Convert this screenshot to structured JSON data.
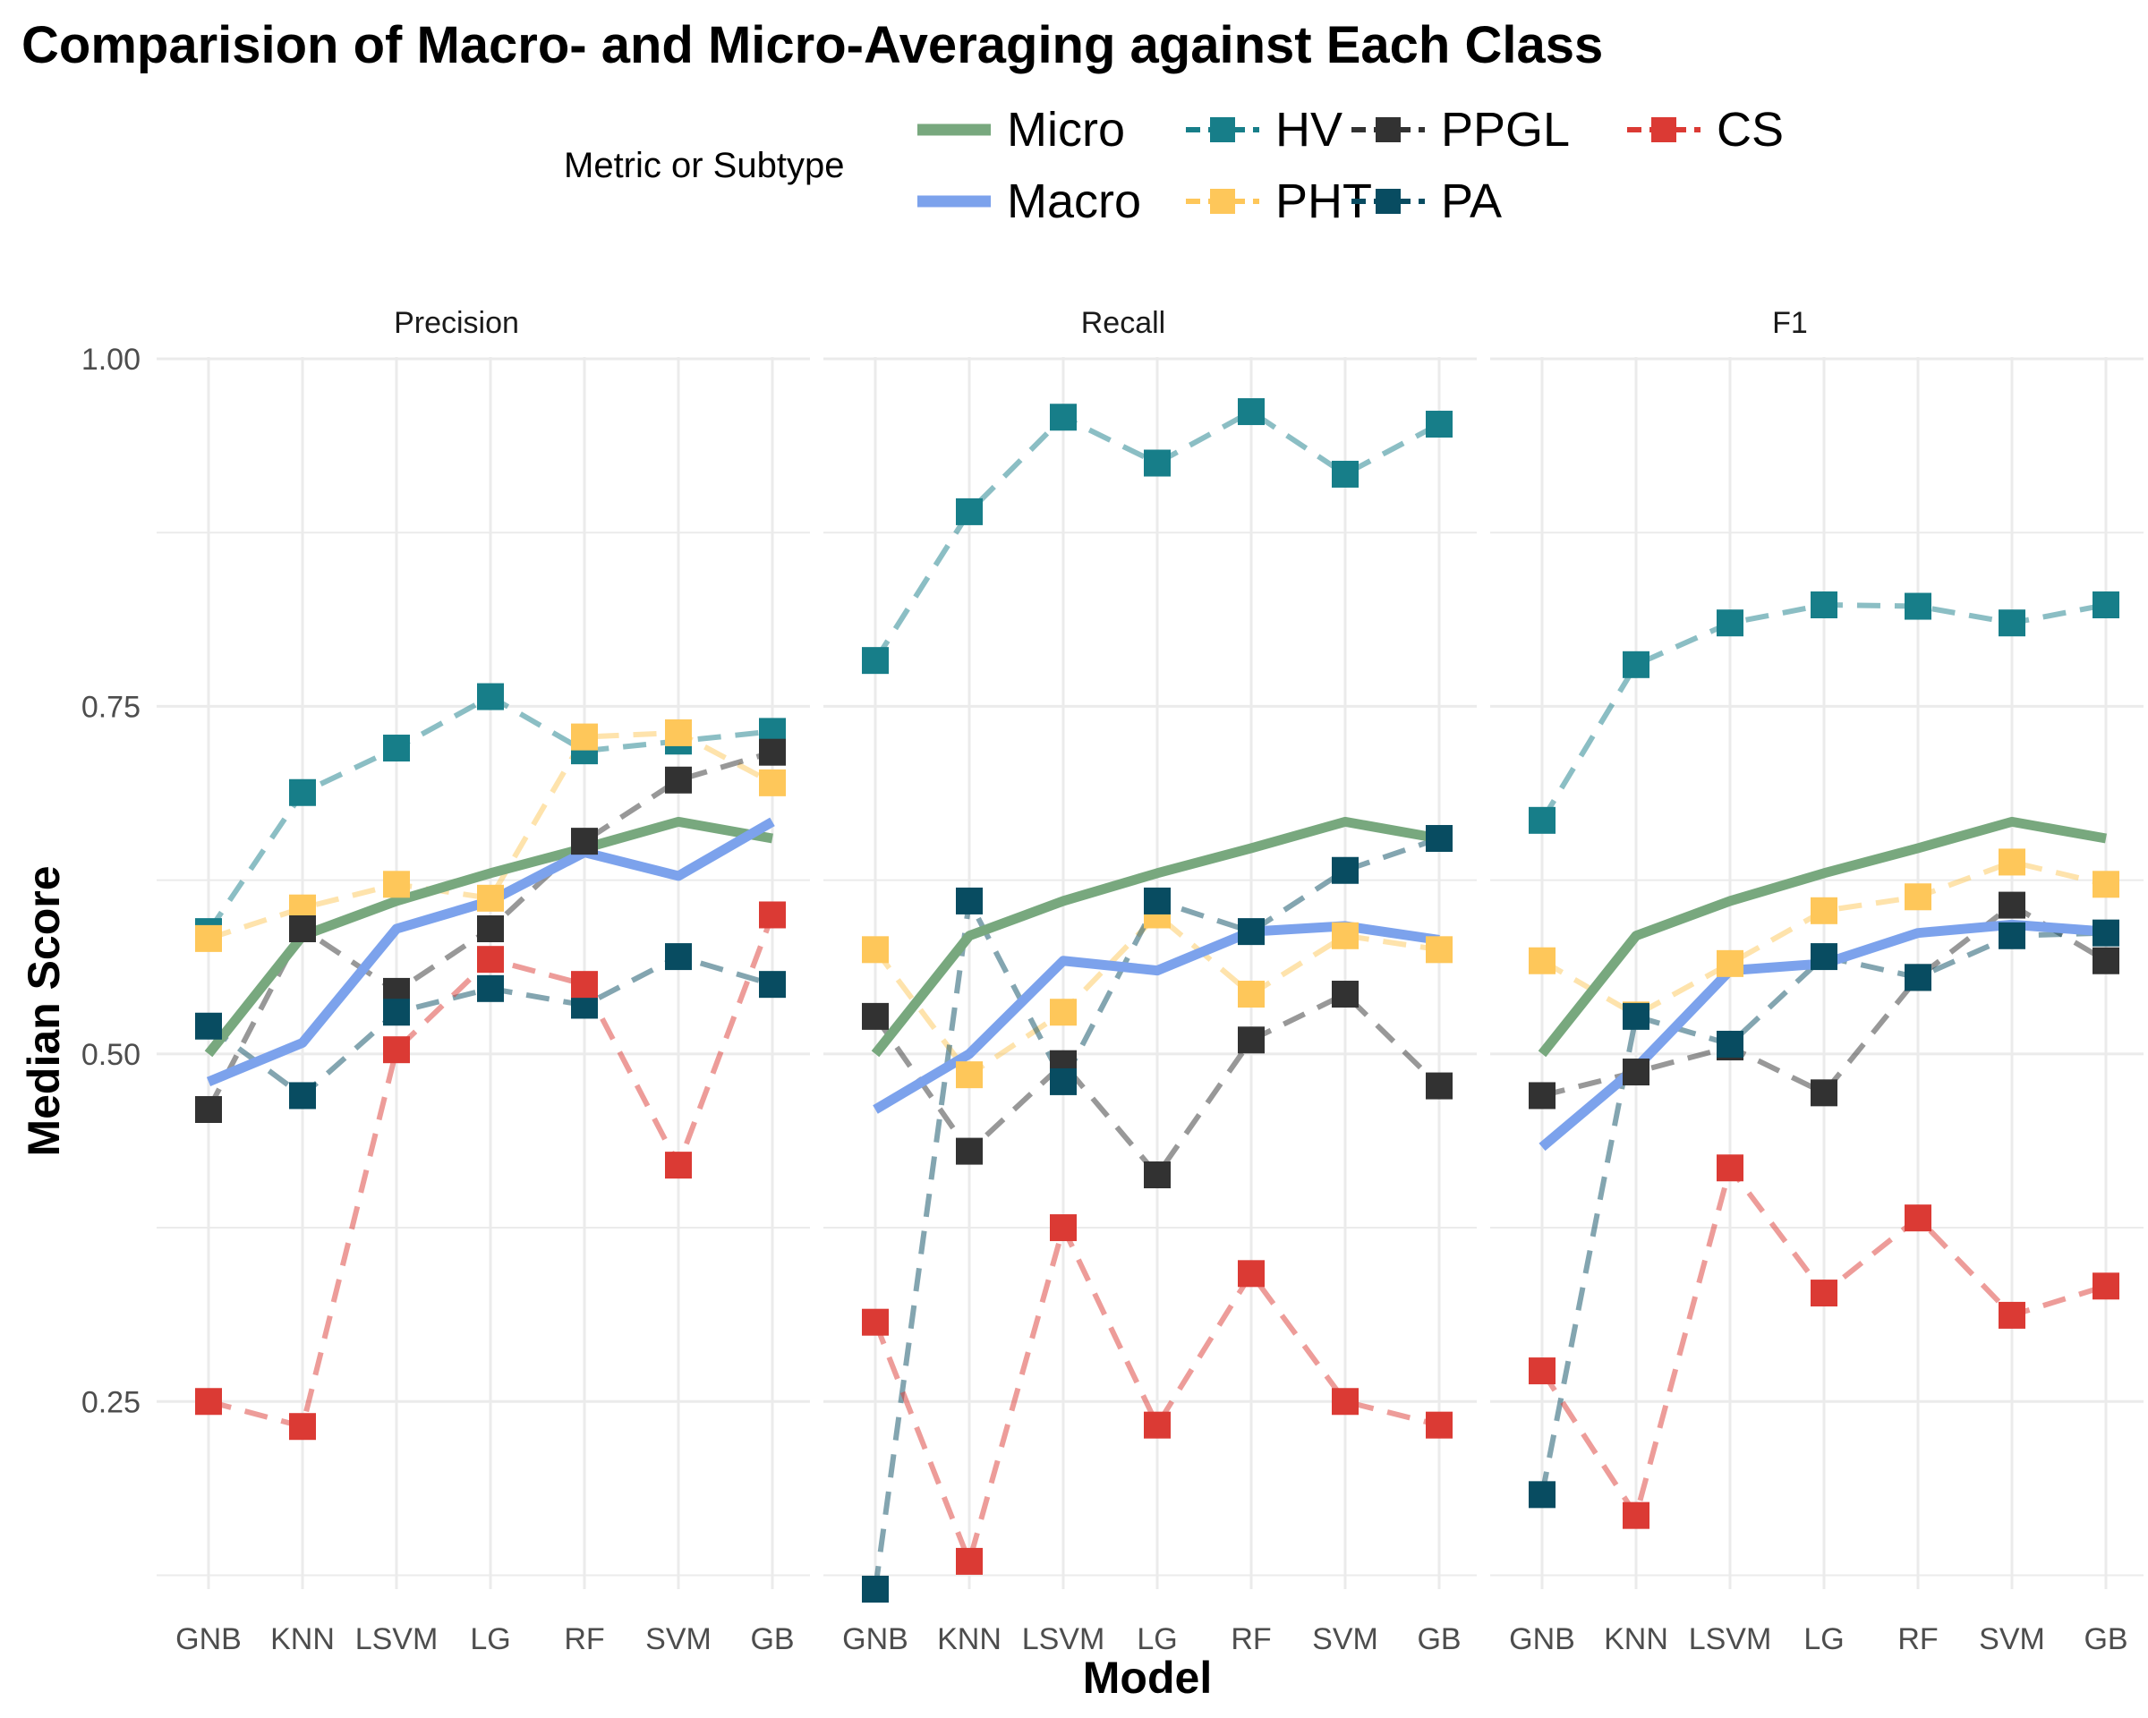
{
  "chart_data": {
    "type": "line",
    "title": "Comparision of Macro- and Micro-Averaging against Each Class",
    "xlabel": "Model",
    "ylabel": "Median Score",
    "legend_title": "Metric or Subtype",
    "legend_position": "top",
    "grid": true,
    "ylim": [
      0.115,
      1.0
    ],
    "y_ticks": [
      "0.25",
      "0.50",
      "0.75",
      "1.00"
    ],
    "categories": [
      "GNB",
      "KNN",
      "LSVM",
      "LG",
      "RF",
      "SVM",
      "GB"
    ],
    "panels": [
      {
        "name": "Precision",
        "series": [
          {
            "name": "Micro",
            "values": [
              0.5,
              0.585,
              0.61,
              0.63,
              0.648,
              0.667,
              0.655
            ]
          },
          {
            "name": "Macro",
            "values": [
              0.48,
              0.508,
              0.59,
              0.61,
              0.645,
              0.628,
              0.667
            ]
          },
          {
            "name": "HV",
            "values": [
              0.588,
              0.688,
              0.72,
              0.757,
              0.718,
              0.725,
              0.732
            ]
          },
          {
            "name": "PHT",
            "values": [
              0.583,
              0.605,
              0.622,
              0.612,
              0.728,
              0.731,
              0.695
            ]
          },
          {
            "name": "PPGL",
            "values": [
              0.46,
              0.59,
              0.545,
              0.59,
              0.653,
              0.697,
              0.717
            ]
          },
          {
            "name": "PA",
            "values": [
              0.52,
              0.47,
              0.53,
              0.547,
              0.535,
              0.57,
              0.55
            ]
          },
          {
            "name": "CS",
            "values": [
              0.25,
              0.232,
              0.503,
              0.568,
              0.55,
              0.42,
              0.6
            ]
          }
        ]
      },
      {
        "name": "Recall",
        "series": [
          {
            "name": "Micro",
            "values": [
              0.5,
              0.585,
              0.61,
              0.63,
              0.648,
              0.667,
              0.655
            ]
          },
          {
            "name": "Macro",
            "values": [
              0.46,
              0.5,
              0.567,
              0.56,
              0.588,
              0.592,
              0.582
            ]
          },
          {
            "name": "HV",
            "values": [
              0.783,
              0.89,
              0.958,
              0.925,
              0.962,
              0.917,
              0.953
            ]
          },
          {
            "name": "PHT",
            "values": [
              0.575,
              0.485,
              0.53,
              0.6,
              0.543,
              0.585,
              0.575
            ]
          },
          {
            "name": "PPGL",
            "values": [
              0.527,
              0.43,
              0.493,
              0.413,
              0.51,
              0.543,
              0.477
            ]
          },
          {
            "name": "PA",
            "values": [
              0.115,
              0.61,
              0.48,
              0.61,
              0.588,
              0.632,
              0.655
            ]
          },
          {
            "name": "CS",
            "values": [
              0.307,
              0.135,
              0.375,
              0.233,
              0.342,
              0.25,
              0.233
            ]
          }
        ]
      },
      {
        "name": "F1",
        "series": [
          {
            "name": "Micro",
            "values": [
              0.5,
              0.585,
              0.61,
              0.63,
              0.648,
              0.667,
              0.655
            ]
          },
          {
            "name": "Macro",
            "values": [
              0.433,
              0.49,
              0.56,
              0.565,
              0.587,
              0.593,
              0.588
            ]
          },
          {
            "name": "HV",
            "values": [
              0.668,
              0.78,
              0.81,
              0.823,
              0.822,
              0.81,
              0.823
            ]
          },
          {
            "name": "PHT",
            "values": [
              0.567,
              0.528,
              0.565,
              0.603,
              0.613,
              0.638,
              0.622
            ]
          },
          {
            "name": "PPGL",
            "values": [
              0.47,
              0.487,
              0.505,
              0.472,
              0.555,
              0.607,
              0.567
            ]
          },
          {
            "name": "PA",
            "values": [
              0.183,
              0.527,
              0.507,
              0.57,
              0.555,
              0.585,
              0.587
            ]
          },
          {
            "name": "CS",
            "values": [
              0.272,
              0.168,
              0.418,
              0.328,
              0.382,
              0.312,
              0.333
            ]
          }
        ]
      }
    ],
    "series_styles": [
      {
        "name": "Micro",
        "color": "#78a87e",
        "style": "solid",
        "markers": false
      },
      {
        "name": "Macro",
        "color": "#7ca2ec",
        "style": "solid",
        "markers": false
      },
      {
        "name": "HV",
        "color": "#177e89",
        "style": "dashed",
        "markers": true
      },
      {
        "name": "PHT",
        "color": "#fec75a",
        "style": "dashed",
        "markers": true
      },
      {
        "name": "PPGL",
        "color": "#323232",
        "style": "dashed",
        "markers": true
      },
      {
        "name": "PA",
        "color": "#084c61",
        "style": "dashed",
        "markers": true
      },
      {
        "name": "CS",
        "color": "#db3a34",
        "style": "dashed",
        "markers": true
      }
    ]
  }
}
